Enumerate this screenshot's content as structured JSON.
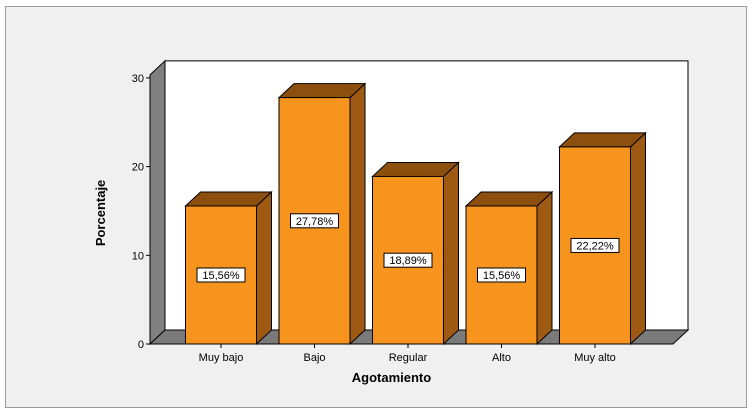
{
  "chart_data": {
    "type": "bar",
    "title": "",
    "xlabel": "Agotamiento",
    "ylabel": "Porcentaje",
    "categories": [
      "Muy bajo",
      "Bajo",
      "Regular",
      "Alto",
      "Muy alto"
    ],
    "values": [
      15.56,
      27.78,
      18.89,
      15.56,
      22.22
    ],
    "value_labels": [
      "15,56%",
      "27,78%",
      "18,89%",
      "15,56%",
      "22,22%"
    ],
    "ylim": [
      0,
      30
    ],
    "yticks": [
      0,
      10,
      20,
      30
    ],
    "grid": false,
    "legend": "none",
    "style": "3d",
    "colors": {
      "bar_front": "#f7941d",
      "bar_top": "#8c4f0d",
      "bar_side": "#9e5a12",
      "wall_back": "#ffffff",
      "wall_side": "#808080",
      "floor": "#7a7a7a",
      "background": "#f0f0f0"
    }
  }
}
